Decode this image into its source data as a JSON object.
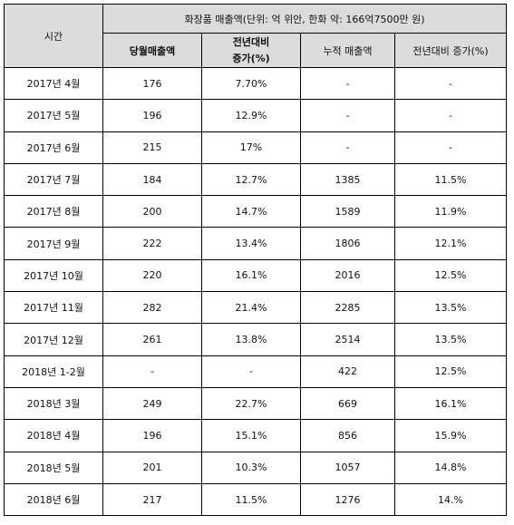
{
  "table": {
    "header": {
      "period": "시간",
      "group_title": "화장품 매출액(단위: 억 위안, 한화 약: 166억7500만 원)",
      "monthly_sales": "당월매출액",
      "yoy_growth_line1": "전년대비",
      "yoy_growth_line2": "증가(%)",
      "cumulative_sales": "누적 매출액",
      "cumulative_yoy_growth": "전년대비 증가(%)"
    },
    "rows": [
      {
        "period": "2017년 4월",
        "monthly": "176",
        "yoy": "7.70%",
        "cumulative": "-",
        "cum_yoy": "-"
      },
      {
        "period": "2017년 5월",
        "monthly": "196",
        "yoy": "12.9%",
        "cumulative": "-",
        "cum_yoy": "-"
      },
      {
        "period": "2017년 6월",
        "monthly": "215",
        "yoy": "17%",
        "cumulative": "-",
        "cum_yoy": "-"
      },
      {
        "period": "2017년 7월",
        "monthly": "184",
        "yoy": "12.7%",
        "cumulative": "1385",
        "cum_yoy": "11.5%"
      },
      {
        "period": "2017년 8월",
        "monthly": "200",
        "yoy": "14.7%",
        "cumulative": "1589",
        "cum_yoy": "11.9%"
      },
      {
        "period": "2017년 9월",
        "monthly": "222",
        "yoy": "13.4%",
        "cumulative": "1806",
        "cum_yoy": "12.1%"
      },
      {
        "period": "2017년 10월",
        "monthly": "220",
        "yoy": "16.1%",
        "cumulative": "2016",
        "cum_yoy": "12.5%"
      },
      {
        "period": "2017년 11월",
        "monthly": "282",
        "yoy": "21.4%",
        "cumulative": "2285",
        "cum_yoy": "13.5%"
      },
      {
        "period": "2017년 12월",
        "monthly": "261",
        "yoy": "13.8%",
        "cumulative": "2514",
        "cum_yoy": "13.5%"
      },
      {
        "period": "2018년 1-2월",
        "monthly": "-",
        "yoy": "-",
        "cumulative": "422",
        "cum_yoy": "12.5%"
      },
      {
        "period": "2018년 3월",
        "monthly": "249",
        "yoy": "22.7%",
        "cumulative": "669",
        "cum_yoy": "16.1%"
      },
      {
        "period": "2018년 4월",
        "monthly": "196",
        "yoy": "15.1%",
        "cumulative": "856",
        "cum_yoy": "15.9%"
      },
      {
        "period": "2018년 5월",
        "monthly": "201",
        "yoy": "10.3%",
        "cumulative": "1057",
        "cum_yoy": "14.8%"
      },
      {
        "period": "2018년 6월",
        "monthly": "217",
        "yoy": "11.5%",
        "cumulative": "1276",
        "cum_yoy": "14.%"
      }
    ]
  }
}
